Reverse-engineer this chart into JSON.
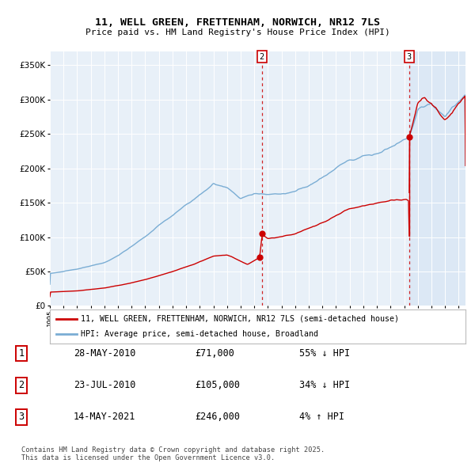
{
  "title_line1": "11, WELL GREEN, FRETTENHAM, NORWICH, NR12 7LS",
  "title_line2": "Price paid vs. HM Land Registry's House Price Index (HPI)",
  "legend_line1": "11, WELL GREEN, FRETTENHAM, NORWICH, NR12 7LS (semi-detached house)",
  "legend_line2": "HPI: Average price, semi-detached house, Broadland",
  "sale1_date": "28-MAY-2010",
  "sale1_price": "£71,000",
  "sale1_hpi": "55% ↓ HPI",
  "sale2_date": "23-JUL-2010",
  "sale2_price": "£105,000",
  "sale2_hpi": "34% ↓ HPI",
  "sale3_date": "14-MAY-2021",
  "sale3_price": "£246,000",
  "sale3_hpi": "4% ↑ HPI",
  "footer": "Contains HM Land Registry data © Crown copyright and database right 2025.\nThis data is licensed under the Open Government Licence v3.0.",
  "red_color": "#cc0000",
  "blue_color": "#7aadd4",
  "background_plot": "#e8f0f8",
  "background_plot_right": "#dce8f5",
  "background_fig": "#ffffff",
  "grid_color": "#c8d4e0",
  "ylim": [
    0,
    370000
  ],
  "yticks": [
    0,
    50000,
    100000,
    150000,
    200000,
    250000,
    300000,
    350000
  ],
  "sale1_x_year": 2010.41,
  "sale2_x_year": 2010.56,
  "sale3_x_year": 2021.37,
  "sale1_price_val": 71000,
  "sale2_price_val": 105000,
  "sale3_price_val": 246000,
  "xmin": 1995,
  "xmax": 2025.5
}
